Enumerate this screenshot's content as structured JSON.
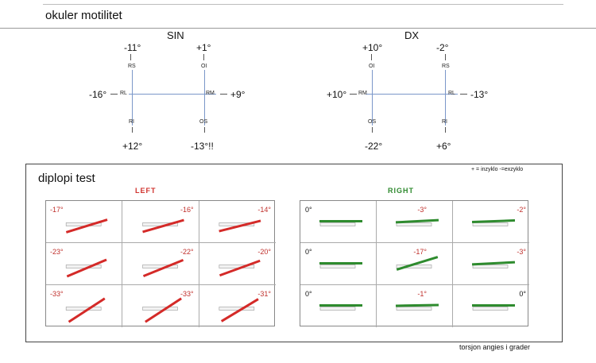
{
  "section": {
    "title": "okuler motilitet"
  },
  "sin": {
    "title": "SIN",
    "top_left": "-11°",
    "top_right": "+1°",
    "left": "-16°",
    "right": "+9°",
    "bottom_left": "+12°",
    "bottom_right": "-13°!!",
    "muscles": {
      "tl": "RS",
      "tr": "OI",
      "ml": "RL",
      "mr": "RM",
      "bl": "RI",
      "br": "OS"
    }
  },
  "dx": {
    "title": "DX",
    "top_left": "+10°",
    "top_right": "-2°",
    "left": "+10°",
    "right": "-13°",
    "bottom_left": "-22°",
    "bottom_right": "+6°",
    "muscles": {
      "tl": "OI",
      "tr": "RS",
      "ml": "RM",
      "mr": "RL",
      "bl": "OS",
      "br": "RI"
    }
  },
  "diplopi": {
    "title": "diplopi test",
    "legend": "+ = inzyklo -=exzyklo",
    "left_label": "LEFT",
    "right_label": "RIGHT",
    "left_color": "#d42a28",
    "right_color": "#2e8b2e",
    "left_grid": [
      [
        "-17°",
        "-16°",
        "-14°"
      ],
      [
        "-23°",
        "-22°",
        "-20°"
      ],
      [
        "-33°",
        "-33°",
        "-31°"
      ]
    ],
    "right_grid": [
      [
        "0°",
        "-3°",
        "-2°"
      ],
      [
        "0°",
        "-17°",
        "-3°"
      ],
      [
        "0°",
        "-1°",
        "0°"
      ]
    ],
    "footer": "torsjon angies i grader"
  }
}
